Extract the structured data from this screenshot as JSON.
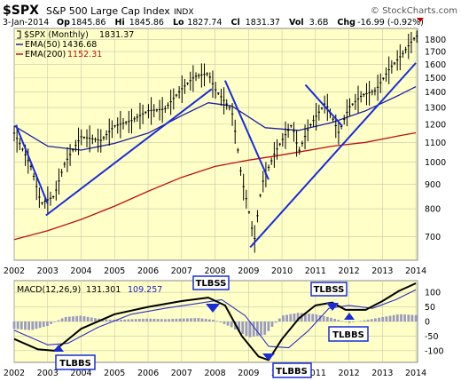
{
  "header": {
    "symbol": "$SPX",
    "name": "S&P 500 Large Cap Index",
    "exchange": "INDX",
    "watermark": "© StockCharts.com",
    "date": "3-Jan-2014",
    "quote": [
      {
        "label": "Op",
        "value": "1845.86"
      },
      {
        "label": "Hi",
        "value": "1845.86"
      },
      {
        "label": "Lo",
        "value": "1827.74"
      },
      {
        "label": "Cl",
        "value": "1831.37"
      },
      {
        "label": "Vol",
        "value": "3.6B"
      },
      {
        "label": "Chg",
        "value": "-16.99 (-0.92%)"
      }
    ]
  },
  "legend": {
    "price": {
      "label": "$SPX (Monthly)",
      "value": "1831.37"
    },
    "ema50": {
      "label": "EMA(50)",
      "value": "1436.68"
    },
    "ema200": {
      "label": "EMA(200)",
      "value": "1152.31"
    }
  },
  "macd_legend": {
    "label": "MACD(12,26,9)",
    "value1": "131.301",
    "value2": "109.257"
  },
  "annotations": [
    "TLBSS",
    "TLBSS",
    "TLBBS",
    "TLBBS",
    "TLBBS"
  ],
  "colors": {
    "panel_bg": "#ffffc8",
    "grid": "#c8c8a8",
    "price": "#000000",
    "ema50": "#2020a0",
    "ema200": "#c01010",
    "trendline": "#1a2cd8",
    "histogram": "#9b9bc0",
    "signal": "#3030c0",
    "callout": "#1a2cd8"
  },
  "chart_data": [
    {
      "type": "candlestick",
      "title": "S&P 500 Large Cap Index",
      "xlabel": "",
      "ylabel": "",
      "scale": "log",
      "ylim": [
        625,
        1900
      ],
      "yticks": [
        "700",
        "800",
        "900",
        "1000",
        "1100",
        "1200",
        "1300",
        "1400",
        "1500",
        "1600",
        "1700",
        "1800"
      ],
      "xlim": [
        2002.0,
        2014.05
      ],
      "xticks": [
        "2002",
        "2003",
        "2004",
        "2005",
        "2006",
        "2007",
        "2008",
        "2009",
        "2010",
        "2011",
        "2012",
        "2013",
        "2014"
      ],
      "series": [
        {
          "name": "$SPX (Monthly)",
          "x": [
            2002.0,
            2002.5,
            2002.8,
            2003.2,
            2003.5,
            2004.0,
            2004.6,
            2005.0,
            2005.5,
            2006.0,
            2006.5,
            2007.0,
            2007.4,
            2007.8,
            2008.0,
            2008.5,
            2008.8,
            2009.0,
            2009.17,
            2009.4,
            2009.8,
            2010.3,
            2010.5,
            2010.8,
            2011.3,
            2011.7,
            2012.0,
            2012.4,
            2012.8,
            2013.2,
            2013.6,
            2014.0
          ],
          "values": [
            1150,
            980,
            820,
            850,
            990,
            1130,
            1110,
            1190,
            1220,
            1280,
            1290,
            1420,
            1510,
            1530,
            1420,
            1280,
            920,
            800,
            680,
            900,
            1050,
            1200,
            1050,
            1180,
            1330,
            1150,
            1300,
            1380,
            1410,
            1560,
            1680,
            1831
          ]
        },
        {
          "name": "EMA(50)",
          "x": [
            2002.0,
            2003.0,
            2004.0,
            2005.0,
            2006.0,
            2007.0,
            2007.8,
            2008.5,
            2009.5,
            2010.5,
            2011.5,
            2012.5,
            2013.5,
            2014.0
          ],
          "values": [
            1190,
            1080,
            1060,
            1095,
            1150,
            1250,
            1330,
            1310,
            1180,
            1165,
            1210,
            1280,
            1380,
            1437
          ]
        },
        {
          "name": "EMA(200)",
          "x": [
            2002.0,
            2003.0,
            2004.0,
            2005.0,
            2006.0,
            2007.0,
            2008.0,
            2009.0,
            2009.8,
            2010.5,
            2011.5,
            2012.5,
            2013.5,
            2014.0
          ],
          "values": [
            690,
            720,
            760,
            810,
            870,
            930,
            980,
            1010,
            1030,
            1050,
            1080,
            1100,
            1135,
            1152
          ]
        }
      ],
      "trendlines": [
        {
          "x": [
            2002.05,
            2003.0
          ],
          "values": [
            1195,
            820
          ]
        },
        {
          "x": [
            2002.95,
            2007.9
          ],
          "values": [
            775,
            1420
          ]
        },
        {
          "x": [
            2008.3,
            2009.6
          ],
          "values": [
            1480,
            920
          ]
        },
        {
          "x": [
            2009.05,
            2014.0
          ],
          "values": [
            665,
            1610
          ]
        },
        {
          "x": [
            2010.7,
            2011.8
          ],
          "values": [
            1450,
            1190
          ]
        }
      ]
    },
    {
      "type": "line",
      "title": "MACD(12,26,9)",
      "xlabel": "",
      "ylabel": "",
      "ylim": [
        -140,
        140
      ],
      "yticks": [
        "-100",
        "-50",
        "0",
        "50",
        "100"
      ],
      "xticks": [
        "2002",
        "2003",
        "2004",
        "2005",
        "2006",
        "2007",
        "2008",
        "2009",
        "2010",
        "2011",
        "2012",
        "2013",
        "2014"
      ],
      "series": [
        {
          "name": "MACD",
          "x": [
            2002.0,
            2002.7,
            2003.2,
            2004.0,
            2005.0,
            2006.0,
            2007.0,
            2007.8,
            2008.3,
            2008.8,
            2009.3,
            2009.6,
            2010.0,
            2010.5,
            2011.0,
            2011.5,
            2011.9,
            2012.5,
            2013.0,
            2013.5,
            2014.0
          ],
          "values": [
            -60,
            -95,
            -100,
            -25,
            25,
            50,
            70,
            82,
            55,
            -50,
            -120,
            -132,
            -60,
            10,
            55,
            65,
            40,
            40,
            70,
            105,
            131
          ]
        },
        {
          "name": "Signal",
          "x": [
            2002.0,
            2003.0,
            2003.6,
            2004.5,
            2005.5,
            2006.5,
            2007.5,
            2008.2,
            2008.9,
            2009.6,
            2010.2,
            2010.8,
            2011.4,
            2012.0,
            2012.7,
            2013.4,
            2014.0
          ],
          "values": [
            -30,
            -80,
            -75,
            -20,
            25,
            45,
            62,
            75,
            20,
            -85,
            -90,
            -30,
            45,
            55,
            45,
            75,
            109
          ]
        },
        {
          "name": "Histogram",
          "x": [
            2002.0,
            2002.5,
            2003.0,
            2003.5,
            2004.0,
            2004.5,
            2005.0,
            2005.5,
            2006.0,
            2006.5,
            2007.0,
            2007.5,
            2008.0,
            2008.5,
            2009.0,
            2009.5,
            2010.0,
            2010.5,
            2011.0,
            2011.5,
            2012.0,
            2012.5,
            2013.0,
            2013.5,
            2014.0
          ],
          "values": [
            -25,
            -30,
            -15,
            15,
            20,
            10,
            5,
            8,
            10,
            8,
            10,
            12,
            5,
            -20,
            -55,
            -45,
            20,
            30,
            25,
            12,
            -5,
            5,
            15,
            25,
            22
          ]
        }
      ]
    }
  ]
}
